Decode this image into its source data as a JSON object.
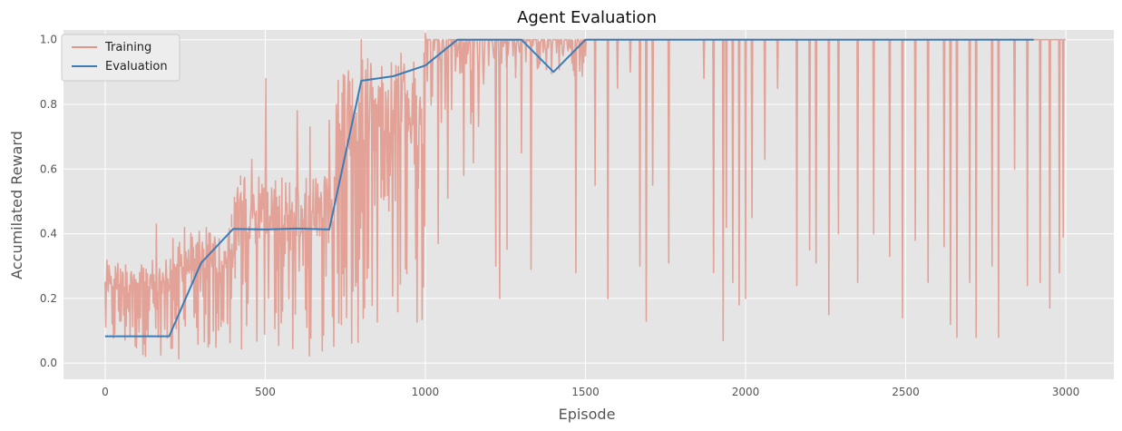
{
  "chart_data": {
    "type": "line",
    "title": "Agent Evaluation",
    "xlabel": "Episode",
    "ylabel": "Accumilated Reward",
    "xlim": [
      -130,
      3150
    ],
    "ylim": [
      -0.05,
      1.03
    ],
    "xticks": [
      0,
      500,
      1000,
      1500,
      2000,
      2500,
      3000
    ],
    "yticks": [
      0.0,
      0.2,
      0.4,
      0.6,
      0.8,
      1.0
    ],
    "xtick_labels": [
      "0",
      "500",
      "1000",
      "1500",
      "2000",
      "2500",
      "3000"
    ],
    "ytick_labels": [
      "0.0",
      "0.2",
      "0.4",
      "0.6",
      "0.8",
      "1.0"
    ],
    "grid": true,
    "legend_position": "top-left",
    "colors": {
      "training": "#E2968A",
      "evaluation": "#3B7CB6",
      "plot_background": "#E5E5E5",
      "grid": "#FFFFFF"
    },
    "series": [
      {
        "name": "Training",
        "style": "noisy",
        "x_range": [
          0,
          3000
        ],
        "baseline_segments": [
          {
            "x": [
              0,
              200
            ],
            "low": 0.02,
            "high": 0.32
          },
          {
            "x": [
              200,
              400
            ],
            "low": 0.01,
            "high": 0.42
          },
          {
            "x": [
              400,
              720
            ],
            "low": 0.02,
            "high": 0.58
          },
          {
            "x": [
              720,
              800
            ],
            "low": 0.05,
            "high": 0.92
          },
          {
            "x": [
              800,
              1000
            ],
            "low": 0.1,
            "high": 0.96
          },
          {
            "x": [
              1000,
              1200
            ],
            "low": 0.7,
            "high": 1.0
          },
          {
            "x": [
              1200,
              1500
            ],
            "low": 0.88,
            "high": 1.0
          },
          {
            "x": [
              1500,
              3000
            ],
            "low": 1.0,
            "high": 1.0
          }
        ],
        "spikes": [
          [
            160,
            0.43
          ],
          [
            395,
            0.46
          ],
          [
            423,
            0.55
          ],
          [
            458,
            0.63
          ],
          [
            502,
            0.88
          ],
          [
            600,
            0.78
          ],
          [
            640,
            0.73
          ],
          [
            700,
            0.75
          ],
          [
            764,
            0.87
          ],
          [
            800,
            1.0
          ],
          [
            918,
            0.74
          ],
          [
            968,
            0.88
          ],
          [
            1000,
            1.02
          ],
          [
            1040,
            0.37
          ],
          [
            1070,
            0.51
          ],
          [
            1120,
            0.58
          ],
          [
            1150,
            0.62
          ],
          [
            1220,
            0.3
          ],
          [
            1232,
            0.2
          ],
          [
            1255,
            0.35
          ],
          [
            1300,
            0.65
          ],
          [
            1330,
            0.29
          ],
          [
            1470,
            0.28
          ],
          [
            1500,
            0.95
          ],
          [
            1530,
            0.55
          ],
          [
            1570,
            0.2
          ],
          [
            1600,
            0.85
          ],
          [
            1640,
            0.9
          ],
          [
            1670,
            0.3
          ],
          [
            1690,
            0.13
          ],
          [
            1710,
            0.55
          ],
          [
            1760,
            0.31
          ],
          [
            1870,
            0.88
          ],
          [
            1900,
            0.28
          ],
          [
            1930,
            0.07
          ],
          [
            1940,
            0.42
          ],
          [
            1960,
            0.25
          ],
          [
            1980,
            0.18
          ],
          [
            2000,
            0.2
          ],
          [
            2020,
            0.45
          ],
          [
            2060,
            0.63
          ],
          [
            2100,
            0.85
          ],
          [
            2160,
            0.24
          ],
          [
            2200,
            0.35
          ],
          [
            2220,
            0.31
          ],
          [
            2260,
            0.15
          ],
          [
            2290,
            0.4
          ],
          [
            2350,
            0.25
          ],
          [
            2400,
            0.4
          ],
          [
            2450,
            0.33
          ],
          [
            2490,
            0.14
          ],
          [
            2530,
            0.38
          ],
          [
            2570,
            0.25
          ],
          [
            2620,
            0.36
          ],
          [
            2640,
            0.12
          ],
          [
            2660,
            0.08
          ],
          [
            2700,
            0.25
          ],
          [
            2720,
            0.08
          ],
          [
            2770,
            0.3
          ],
          [
            2790,
            0.08
          ],
          [
            2840,
            0.6
          ],
          [
            2880,
            0.24
          ],
          [
            2920,
            0.25
          ],
          [
            2950,
            0.17
          ],
          [
            2980,
            0.28
          ],
          [
            2992,
            0.39
          ]
        ]
      },
      {
        "name": "Evaluation",
        "x": [
          0,
          100,
          200,
          300,
          400,
          500,
          600,
          700,
          800,
          900,
          1000,
          1100,
          1200,
          1300,
          1400,
          1500,
          1600,
          1700,
          1800,
          1900,
          2000,
          2100,
          2200,
          2300,
          2400,
          2500,
          2600,
          2700,
          2800,
          2900
        ],
        "y": [
          0.083,
          0.083,
          0.083,
          0.31,
          0.415,
          0.413,
          0.416,
          0.413,
          0.873,
          0.887,
          0.92,
          1.0,
          1.0,
          1.0,
          0.9,
          1.0,
          1.0,
          1.0,
          1.0,
          1.0,
          1.0,
          1.0,
          1.0,
          1.0,
          1.0,
          1.0,
          1.0,
          1.0,
          1.0,
          1.0
        ]
      }
    ]
  }
}
